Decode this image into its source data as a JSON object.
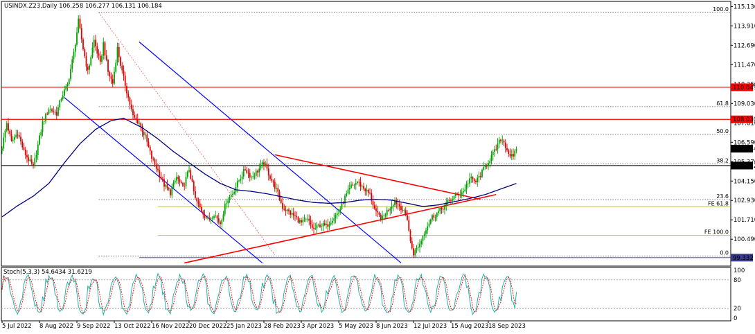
{
  "chart_data": [
    {
      "type": "candlestick",
      "symbol_header": "USINDX.Z23,Daily  106.258 106.277 106.131 106.184",
      "ylim": [
        98.8,
        115.45
      ],
      "y_ticks": [
        "115.130",
        "113.910",
        "112.690",
        "111.470",
        "110.250",
        "109.030",
        "107.810",
        "106.590",
        "105.370",
        "104.150",
        "102.930",
        "101.710",
        "100.490"
      ],
      "x_ticks": [
        "5 Jul 2022",
        "8 Aug 2022",
        "9 Sep 2022",
        "13 Oct 2022",
        "16 Nov 2022",
        "20 Dec 2022",
        "25 Jan 2023",
        "28 Feb 2023",
        "3 Apr 2023",
        "5 May 2023",
        "8 Jun 2023",
        "12 Jul 2023",
        "15 Aug 2023",
        "18 Sep 2023"
      ],
      "x_tick_index": [
        0,
        24,
        48,
        72,
        96,
        120,
        144,
        168,
        192,
        216,
        240,
        264,
        288,
        312
      ],
      "price_anchors": [
        [
          0,
          106.3
        ],
        [
          3,
          107.8
        ],
        [
          6,
          106.6
        ],
        [
          10,
          107.2
        ],
        [
          14,
          106.0
        ],
        [
          20,
          105.0
        ],
        [
          26,
          107.8
        ],
        [
          30,
          108.7
        ],
        [
          35,
          108.4
        ],
        [
          38,
          109.4
        ],
        [
          42,
          110.2
        ],
        [
          46,
          112.2
        ],
        [
          49,
          114.2
        ],
        [
          52,
          112.5
        ],
        [
          55,
          111.0
        ],
        [
          59,
          113.0
        ],
        [
          63,
          111.5
        ],
        [
          65,
          112.8
        ],
        [
          68,
          111.0
        ],
        [
          71,
          110.3
        ],
        [
          74,
          112.5
        ],
        [
          77,
          111.0
        ],
        [
          80,
          109.8
        ],
        [
          84,
          108.2
        ],
        [
          88,
          107.8
        ],
        [
          92,
          106.9
        ],
        [
          96,
          105.6
        ],
        [
          100,
          104.8
        ],
        [
          104,
          103.9
        ],
        [
          108,
          103.4
        ],
        [
          112,
          104.4
        ],
        [
          116,
          103.7
        ],
        [
          120,
          104.9
        ],
        [
          124,
          103.0
        ],
        [
          128,
          102.3
        ],
        [
          132,
          101.7
        ],
        [
          136,
          102.1
        ],
        [
          140,
          101.5
        ],
        [
          144,
          102.9
        ],
        [
          148,
          103.4
        ],
        [
          152,
          104.2
        ],
        [
          156,
          104.9
        ],
        [
          160,
          104.4
        ],
        [
          164,
          104.8
        ],
        [
          168,
          105.3
        ],
        [
          172,
          104.4
        ],
        [
          176,
          103.6
        ],
        [
          180,
          102.5
        ],
        [
          184,
          102.2
        ],
        [
          188,
          101.9
        ],
        [
          192,
          101.5
        ],
        [
          196,
          101.7
        ],
        [
          200,
          101.1
        ],
        [
          204,
          101.4
        ],
        [
          208,
          101.3
        ],
        [
          212,
          101.8
        ],
        [
          216,
          102.2
        ],
        [
          220,
          103.1
        ],
        [
          224,
          103.8
        ],
        [
          228,
          104.1
        ],
        [
          232,
          103.7
        ],
        [
          236,
          103.3
        ],
        [
          240,
          102.1
        ],
        [
          244,
          101.8
        ],
        [
          248,
          102.4
        ],
        [
          252,
          102.9
        ],
        [
          256,
          102.5
        ],
        [
          260,
          101.8
        ],
        [
          262,
          100.3
        ],
        [
          264,
          99.6
        ],
        [
          268,
          100.2
        ],
        [
          272,
          101.2
        ],
        [
          276,
          101.9
        ],
        [
          280,
          102.2
        ],
        [
          284,
          102.6
        ],
        [
          288,
          103.0
        ],
        [
          292,
          103.3
        ],
        [
          296,
          103.5
        ],
        [
          300,
          104.3
        ],
        [
          304,
          104.1
        ],
        [
          308,
          104.7
        ],
        [
          312,
          105.4
        ],
        [
          316,
          106.0
        ],
        [
          320,
          106.8
        ],
        [
          322,
          106.6
        ],
        [
          325,
          105.9
        ],
        [
          328,
          105.6
        ],
        [
          330,
          106.18
        ]
      ],
      "ma_anchors": [
        [
          0,
          101.9
        ],
        [
          10,
          102.6
        ],
        [
          20,
          103.2
        ],
        [
          30,
          104.0
        ],
        [
          40,
          105.3
        ],
        [
          50,
          106.5
        ],
        [
          60,
          107.4
        ],
        [
          70,
          107.95
        ],
        [
          78,
          108.1
        ],
        [
          90,
          107.5
        ],
        [
          100,
          106.8
        ],
        [
          110,
          106.0
        ],
        [
          120,
          105.3
        ],
        [
          130,
          104.6
        ],
        [
          140,
          104.0
        ],
        [
          150,
          103.6
        ],
        [
          160,
          103.5
        ],
        [
          170,
          103.35
        ],
        [
          180,
          103.15
        ],
        [
          190,
          102.95
        ],
        [
          200,
          102.8
        ],
        [
          210,
          102.75
        ],
        [
          220,
          102.8
        ],
        [
          230,
          102.95
        ],
        [
          240,
          103.0
        ],
        [
          250,
          102.95
        ],
        [
          260,
          102.75
        ],
        [
          270,
          102.55
        ],
        [
          280,
          102.65
        ],
        [
          290,
          102.85
        ],
        [
          300,
          103.05
        ],
        [
          310,
          103.3
        ],
        [
          320,
          103.65
        ],
        [
          330,
          104.0
        ]
      ],
      "horizontal_levels": [
        {
          "price": 110.049,
          "label": "110.049",
          "kind": "resistance"
        },
        {
          "price": 108.03,
          "label": "108.030",
          "kind": "resistance"
        },
        {
          "price": 105.122,
          "label": "105.122",
          "kind": "support"
        },
        {
          "price": 99.332,
          "label": "99.332",
          "kind": "support"
        }
      ],
      "current_price_label": "106.184",
      "current_price": 106.184,
      "fibonacci": [
        {
          "label": "100.0",
          "price": 114.76
        },
        {
          "label": "61.8",
          "price": 108.83
        },
        {
          "label": "50.0",
          "price": 107.08
        },
        {
          "label": "38.2",
          "price": 105.23
        },
        {
          "label": "23.6",
          "price": 102.99
        },
        {
          "label": "0.0",
          "price": 99.43
        }
      ],
      "fib_expansion": [
        {
          "label": "FE 61.8",
          "price": 102.52
        },
        {
          "label": "FE 100.0",
          "price": 100.74
        }
      ],
      "colors": {
        "bull": "#00a000",
        "bear": "#e00000",
        "ma": "#00007f",
        "resistance": "#ff0000",
        "support": "#000000",
        "channel": "#0000ff",
        "trendline": "#ff0000",
        "stoch_main": "#20b2aa",
        "stoch_signal": "#ff0000",
        "grid": "#5b5b5b"
      }
    },
    {
      "type": "line",
      "title": "Stoch(5,3,3) 54.6434 31.6219",
      "ylim": [
        0,
        100
      ],
      "levels": [
        "100",
        "80",
        "20",
        "0"
      ],
      "series": [
        {
          "name": "main",
          "last": 54.6434
        },
        {
          "name": "signal",
          "last": 31.6219
        }
      ]
    }
  ]
}
